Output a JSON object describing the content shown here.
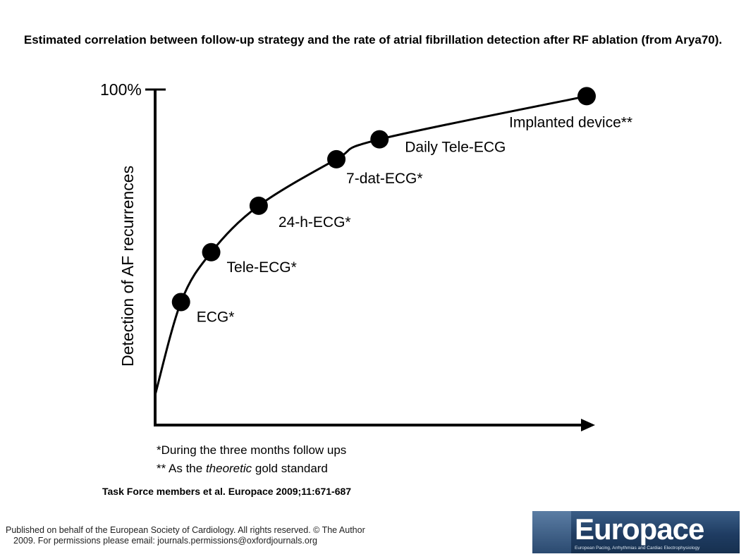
{
  "title": "Estimated correlation between follow-up strategy and the rate of atrial fibrillation detection after RF ablation (from Arya70).",
  "chart_data": {
    "type": "line",
    "ylabel": "Detection of AF recurrences",
    "y_tick_top": "100%",
    "grid": false,
    "points": [
      {
        "label": "ECG*",
        "x": 0.06,
        "y": 0.36
      },
      {
        "label": "Tele-ECG*",
        "x": 0.13,
        "y": 0.51
      },
      {
        "label": "24-h-ECG*",
        "x": 0.24,
        "y": 0.65
      },
      {
        "label": "7-dat-ECG*",
        "x": 0.42,
        "y": 0.79
      },
      {
        "label": "Daily Tele-ECG",
        "x": 0.52,
        "y": 0.85
      },
      {
        "label": "Implanted device**",
        "x": 1.0,
        "y": 0.98
      }
    ],
    "footnotes": [
      "*During the three months follow ups",
      "** As the ",
      "theoretic",
      " gold standard"
    ]
  },
  "citation": "Task Force members et al. Europace 2009;11:671-687",
  "publisher_line1": "Published on behalf of the European Society of Cardiology. All rights reserved. © The  Author",
  "publisher_line2": "2009.  For permissions please email: journals.permissions@oxfordjournals.org",
  "logo": {
    "text": "Europace",
    "subtitle": "European Pacing, Arrhythmias and Cardiac Electrophysiology",
    "color": "#1f3c62"
  }
}
